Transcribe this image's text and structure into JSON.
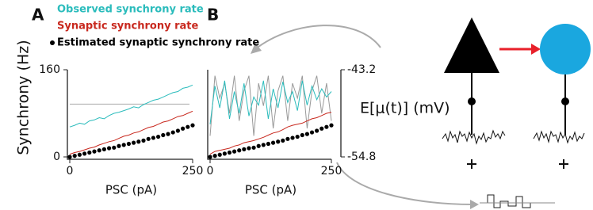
{
  "chart_data": [
    {
      "type": "line",
      "panel_label": "A",
      "x_label": "PSC (pA)",
      "y_label": "Synchrony (Hz)",
      "x": [
        0,
        10,
        20,
        30,
        40,
        50,
        60,
        70,
        80,
        90,
        100,
        110,
        120,
        130,
        140,
        150,
        160,
        170,
        180,
        190,
        200,
        210,
        220,
        230,
        240,
        250
      ],
      "series": [
        {
          "name": "Observed synchrony rate",
          "color": "#2bbcbc",
          "values": [
            55,
            58,
            62,
            60,
            66,
            68,
            72,
            70,
            76,
            80,
            82,
            85,
            88,
            92,
            90,
            96,
            100,
            104,
            106,
            110,
            114,
            118,
            120,
            126,
            128,
            132
          ]
        },
        {
          "name": "Synaptic synchrony rate",
          "color": "#c8281e",
          "values": [
            5,
            8,
            10,
            13,
            16,
            18,
            22,
            25,
            28,
            30,
            34,
            38,
            40,
            44,
            46,
            50,
            54,
            56,
            60,
            64,
            66,
            70,
            74,
            76,
            80,
            84
          ]
        },
        {
          "name": "Estimated synaptic synchrony rate",
          "color": "#000000",
          "marker": "dot",
          "values": [
            0,
            2,
            4,
            6,
            8,
            10,
            12,
            14,
            16,
            17,
            20,
            22,
            24,
            26,
            28,
            30,
            33,
            35,
            37,
            40,
            42,
            45,
            48,
            52,
            55,
            58
          ]
        }
      ],
      "hline": {
        "value": 97,
        "color": "#aaaaaa"
      },
      "xlim": [
        0,
        250
      ],
      "xticks": [
        0,
        250
      ],
      "ylim": [
        0,
        160
      ],
      "yticks": [
        0,
        160
      ]
    },
    {
      "type": "line",
      "panel_label": "B",
      "x_label": "PSC (pA)",
      "y2_label": "E[μ(t)]  (mV)",
      "x": [
        0,
        10,
        20,
        30,
        40,
        50,
        60,
        70,
        80,
        90,
        100,
        110,
        120,
        130,
        140,
        150,
        160,
        170,
        180,
        190,
        200,
        210,
        220,
        230,
        240,
        250
      ],
      "series": [
        {
          "color": "#999999",
          "axis": "y2",
          "values": [
            -52,
            -44,
            -47,
            -45,
            -49,
            -44,
            -50,
            -46,
            -44,
            -52,
            -45,
            -48,
            -44,
            -51,
            -46,
            -44,
            -50,
            -45,
            -47,
            -44,
            -51,
            -46,
            -44,
            -49,
            -45,
            -50
          ]
        },
        {
          "color": "#2bbcbc",
          "values": [
            60,
            130,
            90,
            140,
            70,
            120,
            80,
            135,
            75,
            110,
            95,
            140,
            70,
            125,
            90,
            138,
            100,
            120,
            85,
            140,
            95,
            130,
            105,
            125,
            110,
            120
          ]
        },
        {
          "color": "#c8281e",
          "values": [
            5,
            10,
            12,
            14,
            16,
            20,
            22,
            26,
            28,
            30,
            33,
            36,
            40,
            44,
            46,
            50,
            55,
            58,
            60,
            62,
            66,
            70,
            72,
            76,
            80,
            82
          ]
        },
        {
          "color": "#000000",
          "marker": "dot",
          "values": [
            0,
            2,
            4,
            6,
            8,
            10,
            12,
            14,
            16,
            17,
            20,
            22,
            24,
            26,
            28,
            30,
            33,
            35,
            37,
            40,
            42,
            45,
            48,
            52,
            55,
            58
          ]
        }
      ],
      "xlim": [
        0,
        250
      ],
      "xticks": [
        0,
        250
      ],
      "ylim": [
        0,
        160
      ],
      "y2lim": [
        -54.8,
        -43.2
      ],
      "y2ticks": [
        -54.8,
        -43.2
      ]
    }
  ]
}
